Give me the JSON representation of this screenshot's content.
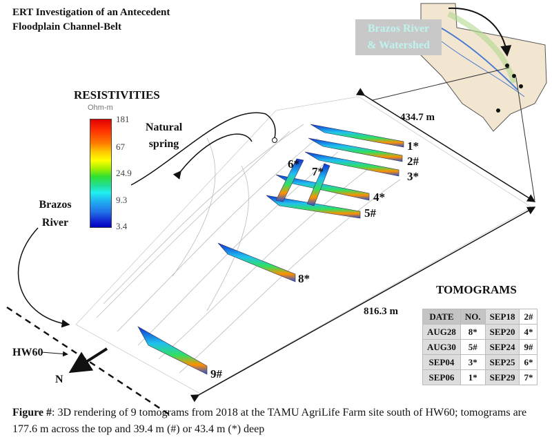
{
  "title": [
    "ERT Investigation of an Antecedent",
    "Floodplain Channel-Belt"
  ],
  "legend": {
    "title": "RESISTIVITIES",
    "unit": "Ohm-m",
    "ticks": [
      "181",
      "67",
      "24.9",
      "9.3",
      "3.4"
    ],
    "colors": [
      "#e00000",
      "#ff7a00",
      "#ffff00",
      "#30e030",
      "#20f0f0",
      "#2070e8",
      "#0000c0"
    ]
  },
  "labels": {
    "natural_spring": [
      "Natural",
      "spring"
    ],
    "brazos_river": [
      "Brazos",
      "River"
    ],
    "hw60": "HW60",
    "north": "N",
    "watershed": [
      "Brazos River",
      "& Watershed"
    ],
    "width_measure": "434.7 m",
    "length_measure": "816.3 m"
  },
  "tomogram_labels": [
    "1*",
    "2#",
    "3*",
    "4*",
    "5#",
    "6*",
    "7*",
    "8*",
    "9#"
  ],
  "table": {
    "title": "TOMOGRAMS",
    "header": [
      "DATE",
      "NO.",
      "SEP18",
      "2#"
    ],
    "rows": [
      [
        "AUG28",
        "8*",
        "SEP20",
        "4*"
      ],
      [
        "AUG30",
        "5#",
        "SEP24",
        "9#"
      ],
      [
        "SEP04",
        "3*",
        "SEP25",
        "6*"
      ],
      [
        "SEP06",
        "1*",
        "SEP29",
        "7*"
      ]
    ]
  },
  "caption": {
    "label": "Figure #",
    "text": ": 3D rendering of 9 tomograms from 2018 at the TAMU AgriLife Farm site south of HW60; tomograms are 177.6 m across the top and 39.4 m (#) or 43.4 m (*) deep"
  }
}
